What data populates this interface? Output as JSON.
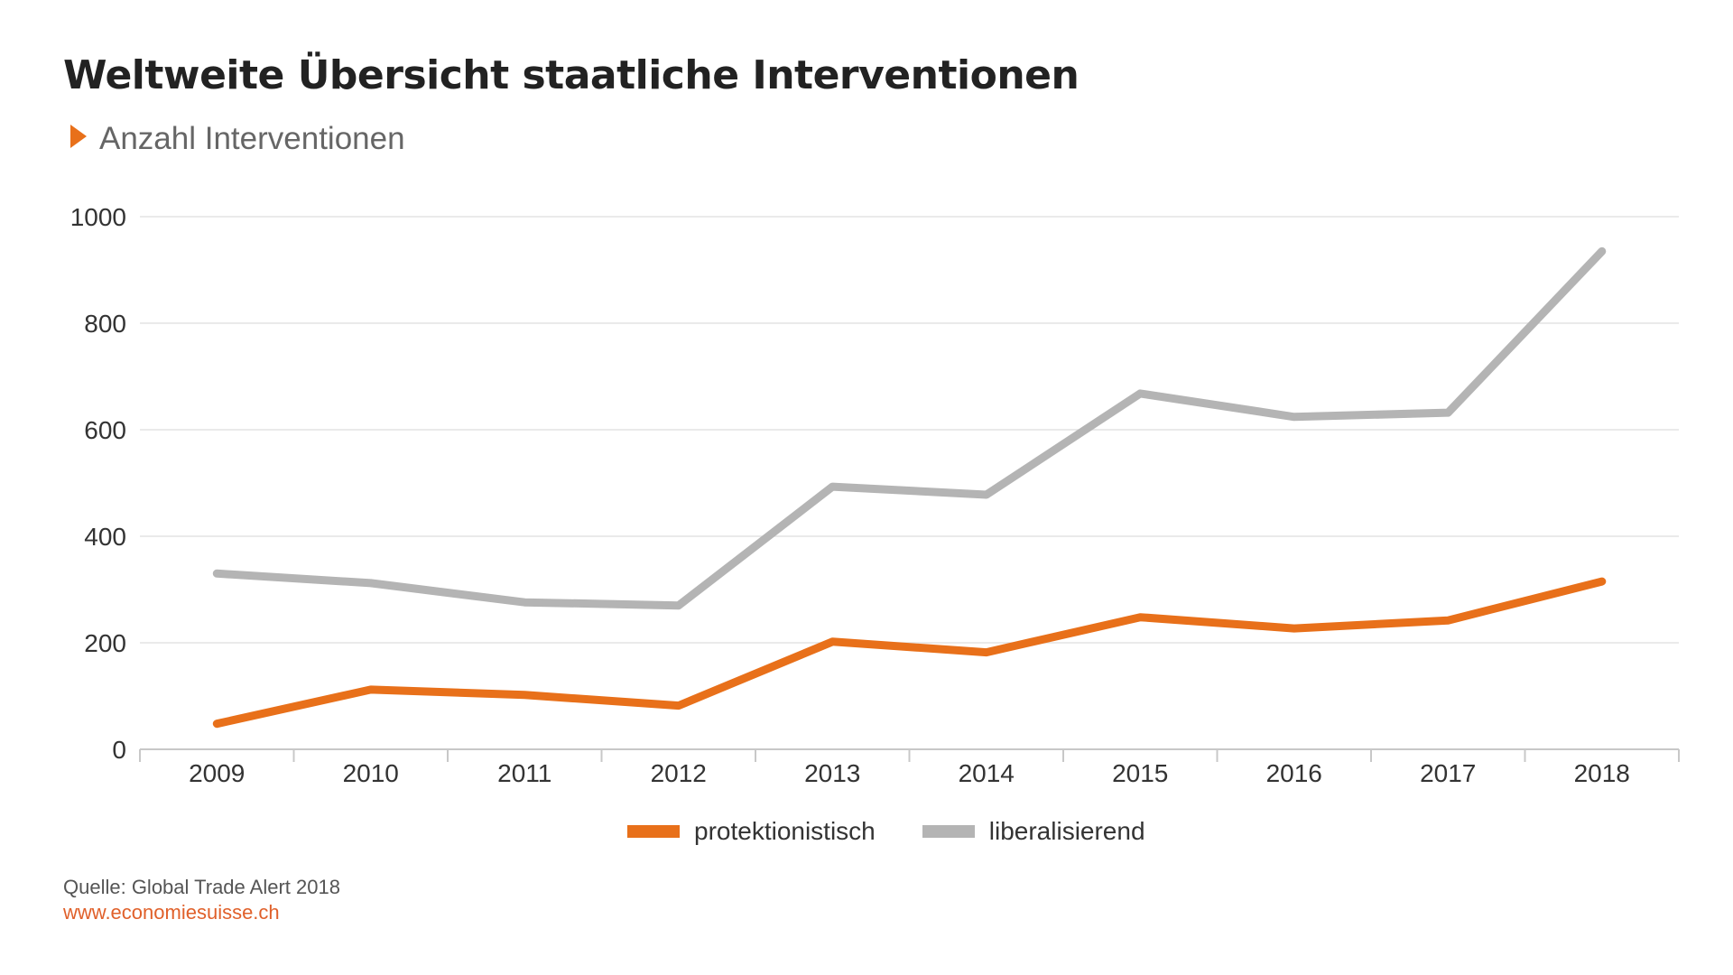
{
  "chart_data": {
    "type": "line",
    "title": "Weltweite Übersicht staatliche Interventionen",
    "subtitle": "Anzahl Interventionen",
    "xlabel": "",
    "ylabel": "",
    "ylim": [
      0,
      1000
    ],
    "yticks": [
      "0",
      "200",
      "400",
      "600",
      "800",
      "1000"
    ],
    "x": [
      "2009",
      "2010",
      "2011",
      "2012",
      "2013",
      "2014",
      "2015",
      "2016",
      "2017",
      "2018"
    ],
    "grid": "horizontal",
    "legend_position": "bottom-center",
    "series": [
      {
        "name": "protektionistisch",
        "color": "#e8701a",
        "values": [
          48,
          112,
          102,
          82,
          202,
          182,
          248,
          227,
          242,
          315
        ]
      },
      {
        "name": "liberalisierend",
        "color": "#b4b4b4",
        "values": [
          330,
          312,
          276,
          270,
          493,
          478,
          668,
          624,
          632,
          935
        ]
      }
    ]
  },
  "footer": {
    "source": "Quelle: Global Trade Alert 2018",
    "website": "www.economiesuisse.ch"
  }
}
